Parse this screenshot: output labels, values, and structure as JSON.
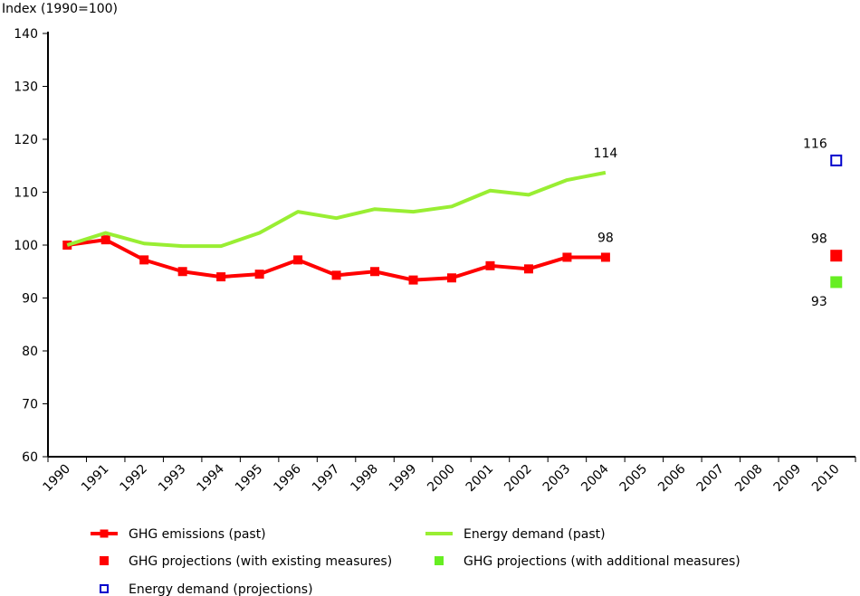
{
  "chart_data": {
    "type": "line",
    "ylabel": "Index (1990=100)",
    "ylim": [
      60,
      140
    ],
    "yticks": [
      "60",
      "70",
      "80",
      "90",
      "100",
      "110",
      "120",
      "130",
      "140"
    ],
    "categories": [
      "1990",
      "1991",
      "1992",
      "1993",
      "1994",
      "1995",
      "1996",
      "1997",
      "1998",
      "1999",
      "2000",
      "2001",
      "2002",
      "2003",
      "2004",
      "2005",
      "2006",
      "2007",
      "2008",
      "2009",
      "2010"
    ],
    "grid": false,
    "legend_position": "bottom",
    "series": [
      {
        "name": "GHG emissions (past)",
        "kind": "line-with-markers",
        "color": "#ff0000",
        "x": [
          "1990",
          "1991",
          "1992",
          "1993",
          "1994",
          "1995",
          "1996",
          "1997",
          "1998",
          "1999",
          "2000",
          "2001",
          "2002",
          "2003",
          "2004"
        ],
        "values": [
          100,
          101,
          97.2,
          95,
          94,
          94.5,
          97.2,
          94.3,
          95,
          93.4,
          93.8,
          96.1,
          95.5,
          97.7,
          97.7
        ],
        "end_label": "98"
      },
      {
        "name": "Energy demand (past)",
        "kind": "line",
        "color": "#99ee33",
        "x": [
          "1990",
          "1991",
          "1992",
          "1993",
          "1994",
          "1995",
          "1996",
          "1997",
          "1998",
          "1999",
          "2000",
          "2001",
          "2002",
          "2003",
          "2004"
        ],
        "values": [
          100,
          102.3,
          100.3,
          99.8,
          99.8,
          102.3,
          106.3,
          105.1,
          106.8,
          106.3,
          107.3,
          110.3,
          109.5,
          112.3,
          113.7
        ],
        "end_label": "114"
      },
      {
        "name": "GHG projections (with existing measures)",
        "kind": "marker",
        "color": "#ff0000",
        "x": [
          "2010"
        ],
        "values": [
          98
        ],
        "label": "98"
      },
      {
        "name": "GHG projections (with additional measures)",
        "kind": "marker",
        "color": "#66ee22",
        "x": [
          "2010"
        ],
        "values": [
          93
        ],
        "label": "93"
      },
      {
        "name": "Energy demand (projections)",
        "kind": "hollow-marker",
        "color": "#0000cc",
        "x": [
          "2010"
        ],
        "values": [
          116
        ],
        "label": "116"
      }
    ]
  }
}
